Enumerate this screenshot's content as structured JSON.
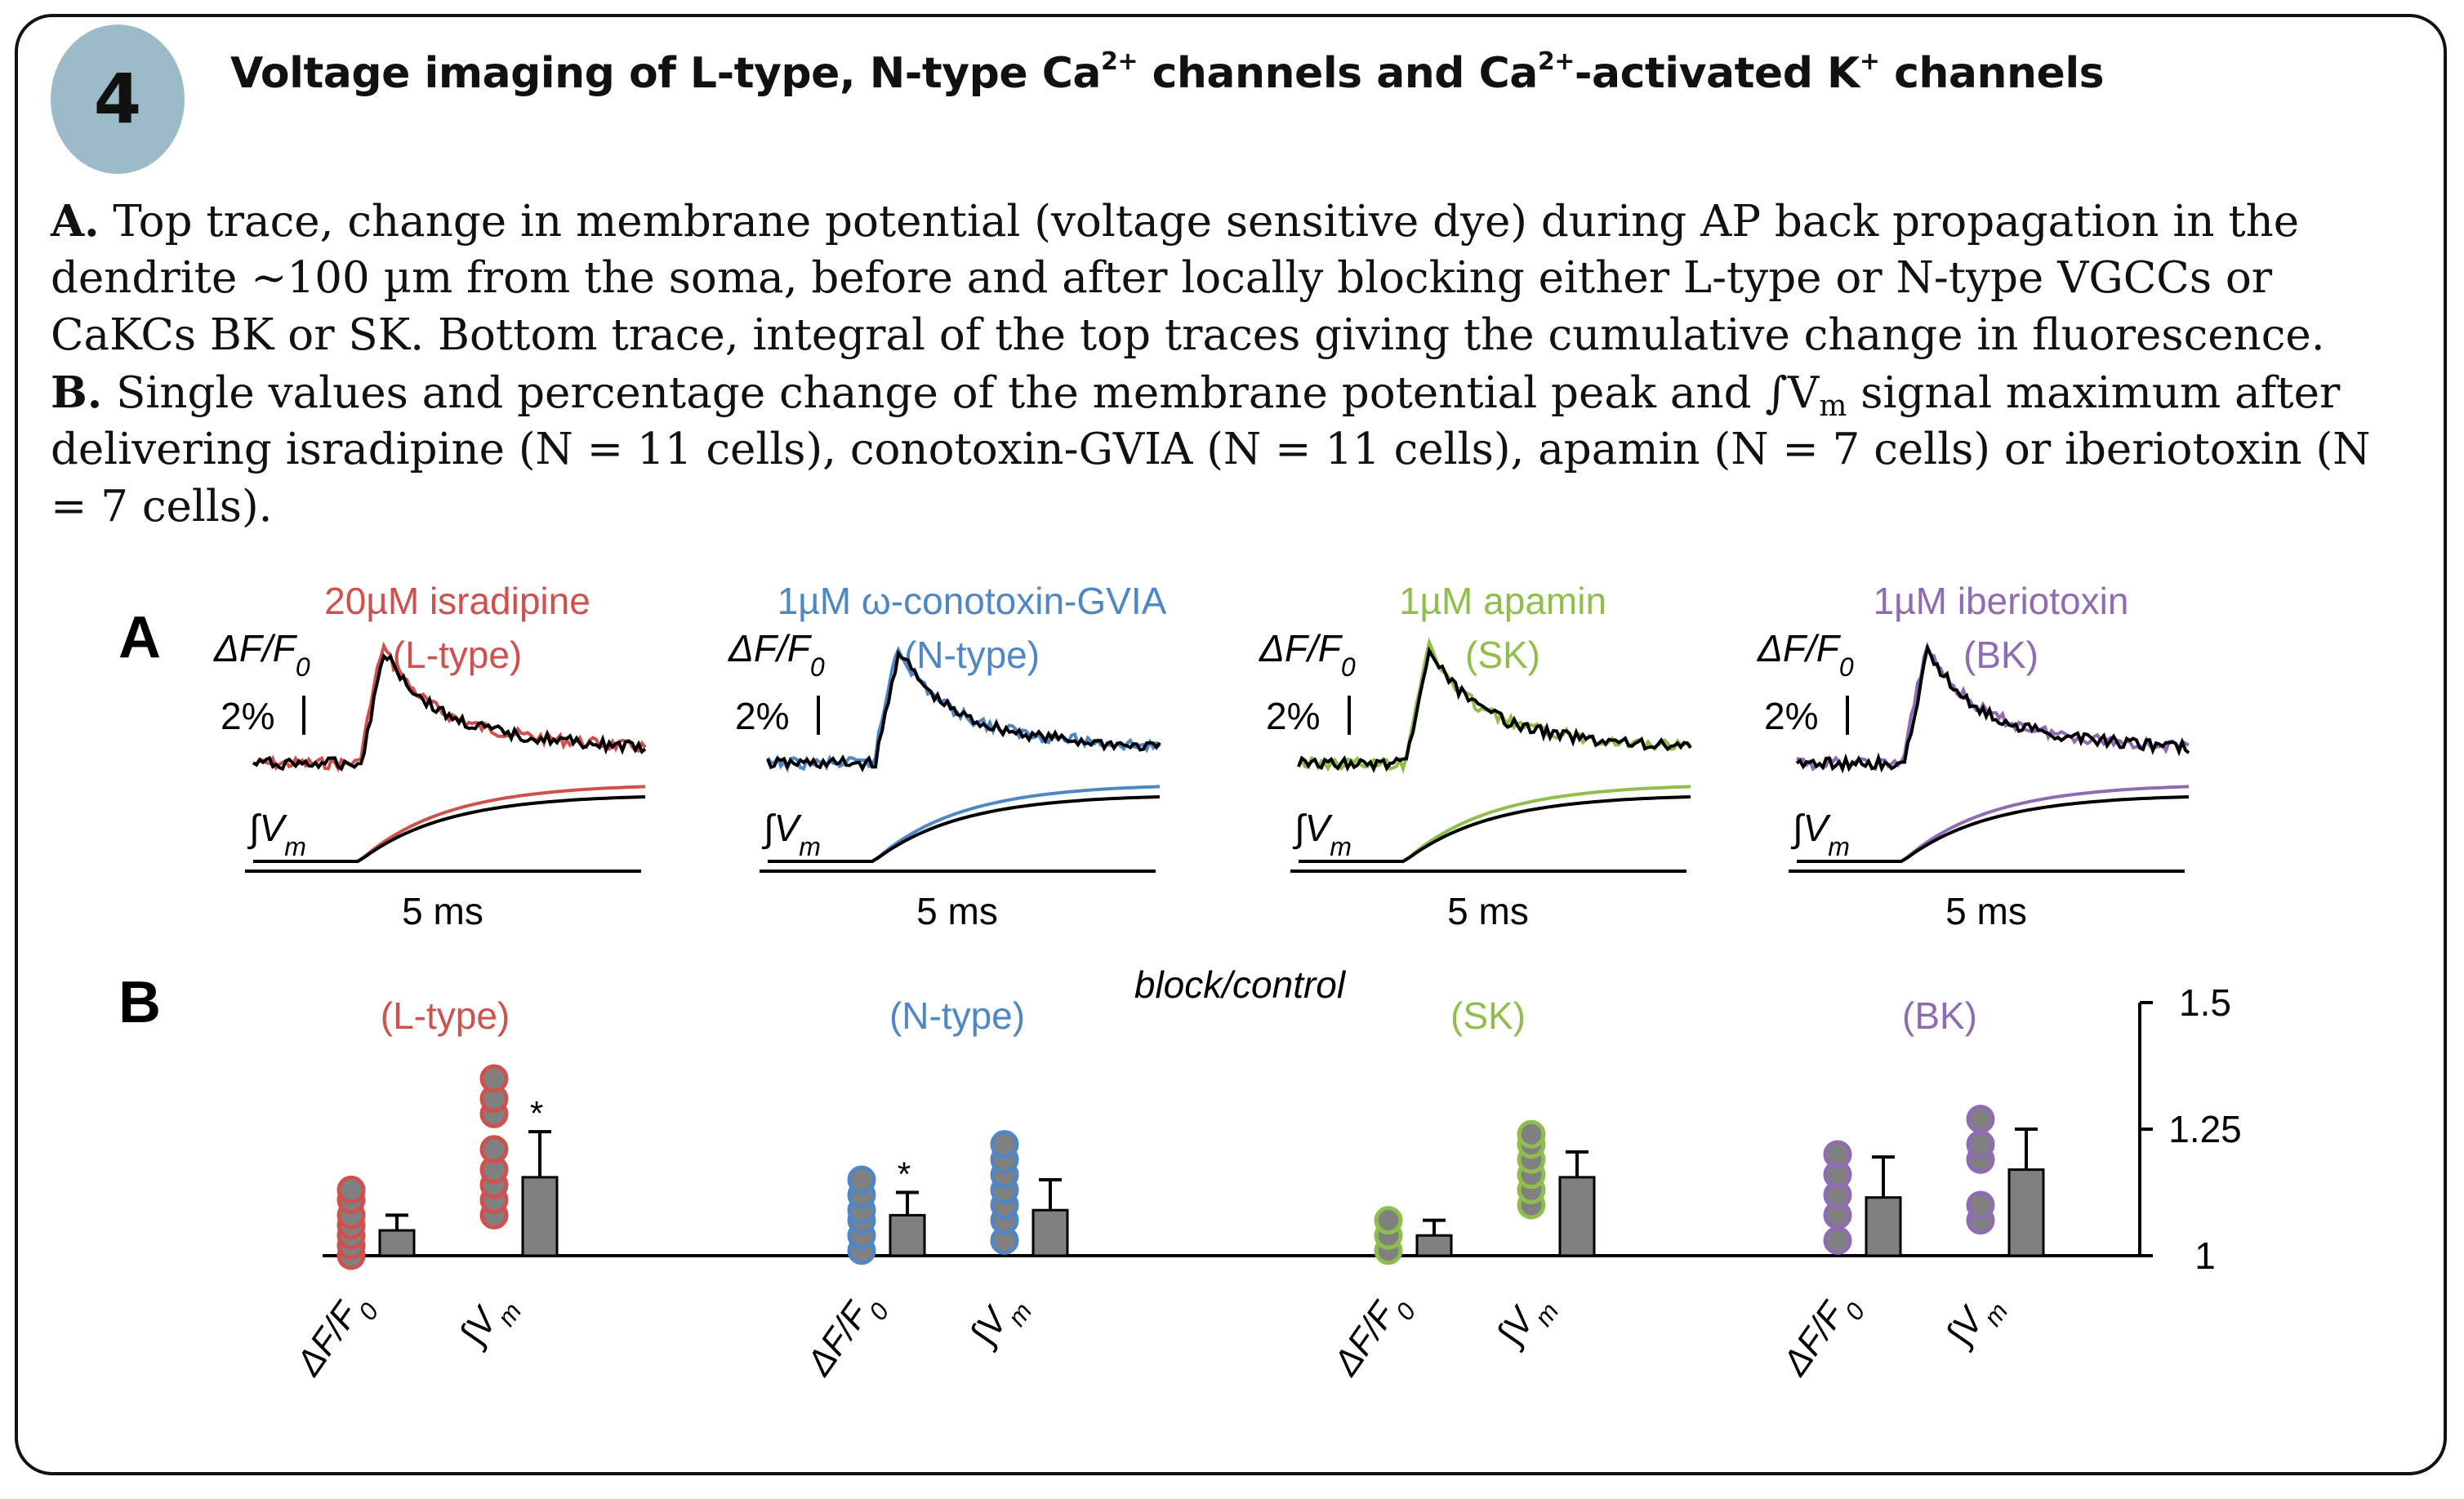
{
  "badge": "4",
  "title_parts": {
    "p1": "Voltage imaging of L-type, N-type Ca",
    "s1": "2+",
    "p2": " channels and Ca",
    "s2": "2+",
    "p3": "-activated K",
    "s3": "+",
    "p4": " channels"
  },
  "caption_lines": {
    "l1_b": "A.",
    "l1": " Top trace, change in membrane potential (voltage sensitive dye) during AP back propagation in the",
    "l2": "dendrite ~100 µm from the soma, before and after locally blocking either L-type or N-type VGCCs or",
    "l3": "CaKCs BK or SK. Bottom trace, integral of the top traces giving the cumulative change in fluorescence.",
    "l4_b": "B.",
    "l4a": " Single values and percentage change of the membrane potential peak and ∫V",
    "l4_sub": "m",
    "l4b": " signal maximum after",
    "l5": "delivering isradipine (N = 11 cells), conotoxin-GVIA (N = 11 cells), apamin (N = 7 cells) or iberiotoxin (N",
    "l6": "= 7 cells)."
  },
  "panel_a": {
    "label": "A",
    "scale_bar_y": "2%",
    "scale_bar_x": "5 ms",
    "dff_label": "ΔF/F",
    "dff_sub": "0",
    "int_label": "∫V",
    "int_sub": "m",
    "drugs": [
      {
        "line1": "20µM isradipine",
        "line2": "(L-type)",
        "color": "#d0504d"
      },
      {
        "line1": "1µM ω-conotoxin-GVIA",
        "line2": "(N-type)",
        "color": "#4f86c6"
      },
      {
        "line1": "1µM apamin",
        "line2": "(SK)",
        "color": "#8fbf4a"
      },
      {
        "line1": "1µM iberiotoxin",
        "line2": "(BK)",
        "color": "#8f6bb5"
      }
    ],
    "control_color": "#000000"
  },
  "panel_b": {
    "label": "B",
    "ylabel": "block/control",
    "xtick_labels": {
      "dff": "ΔF/F",
      "dff_sub": "0",
      "int": "∫V",
      "int_sub": "m"
    }
  },
  "chart_data": {
    "type": "bar",
    "ylabel": "block/control",
    "ylim": [
      1,
      1.5
    ],
    "yticks": [
      "1",
      "1.25",
      "1.5"
    ],
    "bar_color": "#808080",
    "groups": [
      {
        "name": "(L-type)",
        "color": "#d0504d",
        "dff": {
          "mean": 1.05,
          "err": 0.03,
          "points": [
            1.0,
            1.02,
            1.04,
            1.06,
            1.08,
            1.11,
            1.13
          ],
          "sig": ""
        },
        "int": {
          "mean": 1.155,
          "err": 0.09,
          "points": [
            1.08,
            1.11,
            1.14,
            1.17,
            1.21,
            1.28,
            1.31,
            1.35
          ],
          "sig": "*"
        }
      },
      {
        "name": "(N-type)",
        "color": "#4f86c6",
        "dff": {
          "mean": 1.08,
          "err": 0.045,
          "points": [
            1.01,
            1.04,
            1.07,
            1.09,
            1.12,
            1.15
          ],
          "sig": "*"
        },
        "int": {
          "mean": 1.09,
          "err": 0.06,
          "points": [
            1.03,
            1.07,
            1.1,
            1.13,
            1.16,
            1.19,
            1.22
          ],
          "sig": ""
        }
      },
      {
        "name": "(SK)",
        "color": "#8fbf4a",
        "dff": {
          "mean": 1.04,
          "err": 0.03,
          "points": [
            1.01,
            1.04,
            1.07
          ],
          "sig": ""
        },
        "int": {
          "mean": 1.155,
          "err": 0.05,
          "points": [
            1.1,
            1.13,
            1.16,
            1.19,
            1.22,
            1.24
          ],
          "sig": ""
        }
      },
      {
        "name": "(BK)",
        "color": "#8f6bb5",
        "dff": {
          "mean": 1.115,
          "err": 0.08,
          "points": [
            1.03,
            1.08,
            1.12,
            1.16,
            1.2
          ],
          "sig": ""
        },
        "int": {
          "mean": 1.17,
          "err": 0.08,
          "points": [
            1.07,
            1.1,
            1.19,
            1.22,
            1.27
          ],
          "sig": ""
        }
      }
    ]
  }
}
